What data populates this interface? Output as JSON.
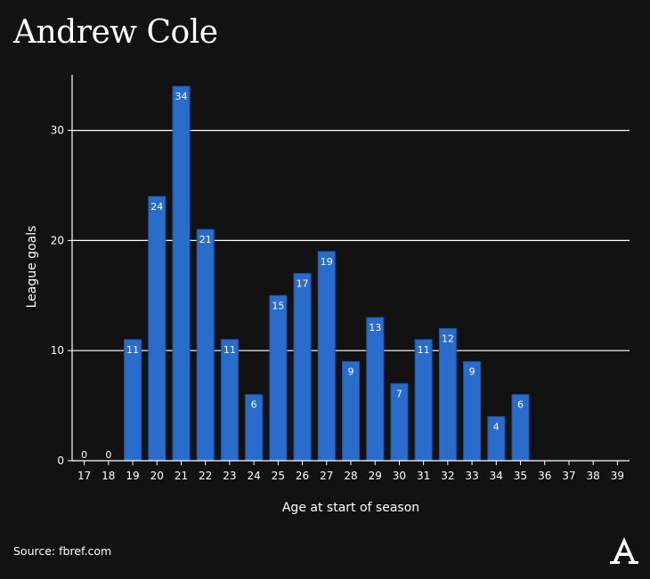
{
  "title": "Andrew Cole",
  "source": "Source: fbref.com",
  "colors": {
    "background": "#121212",
    "bar": "#2a6ccc",
    "bar_stroke": "#1b55a8",
    "text": "#ffffff",
    "grid": "#ffffff"
  },
  "chart_data": {
    "type": "bar",
    "title": "Andrew Cole",
    "xlabel": "Age at start of season",
    "ylabel": "League goals",
    "ylim": [
      0,
      35
    ],
    "yticks": [
      0,
      10,
      20,
      30
    ],
    "grid": "horizontal",
    "categories": [
      "17",
      "18",
      "19",
      "20",
      "21",
      "22",
      "23",
      "24",
      "25",
      "26",
      "27",
      "28",
      "29",
      "30",
      "31",
      "32",
      "33",
      "34",
      "35",
      "36",
      "37",
      "38",
      "39"
    ],
    "values": [
      0,
      0,
      11,
      24,
      34,
      21,
      11,
      6,
      15,
      17,
      19,
      9,
      13,
      7,
      11,
      12,
      9,
      4,
      6,
      null,
      null,
      null,
      null
    ],
    "data_labels": [
      "0",
      "0",
      "11",
      "24",
      "34",
      "21",
      "11",
      "6",
      "15",
      "17",
      "19",
      "9",
      "13",
      "7",
      "11",
      "12",
      "9",
      "4",
      "6",
      "",
      "",
      "",
      ""
    ]
  }
}
